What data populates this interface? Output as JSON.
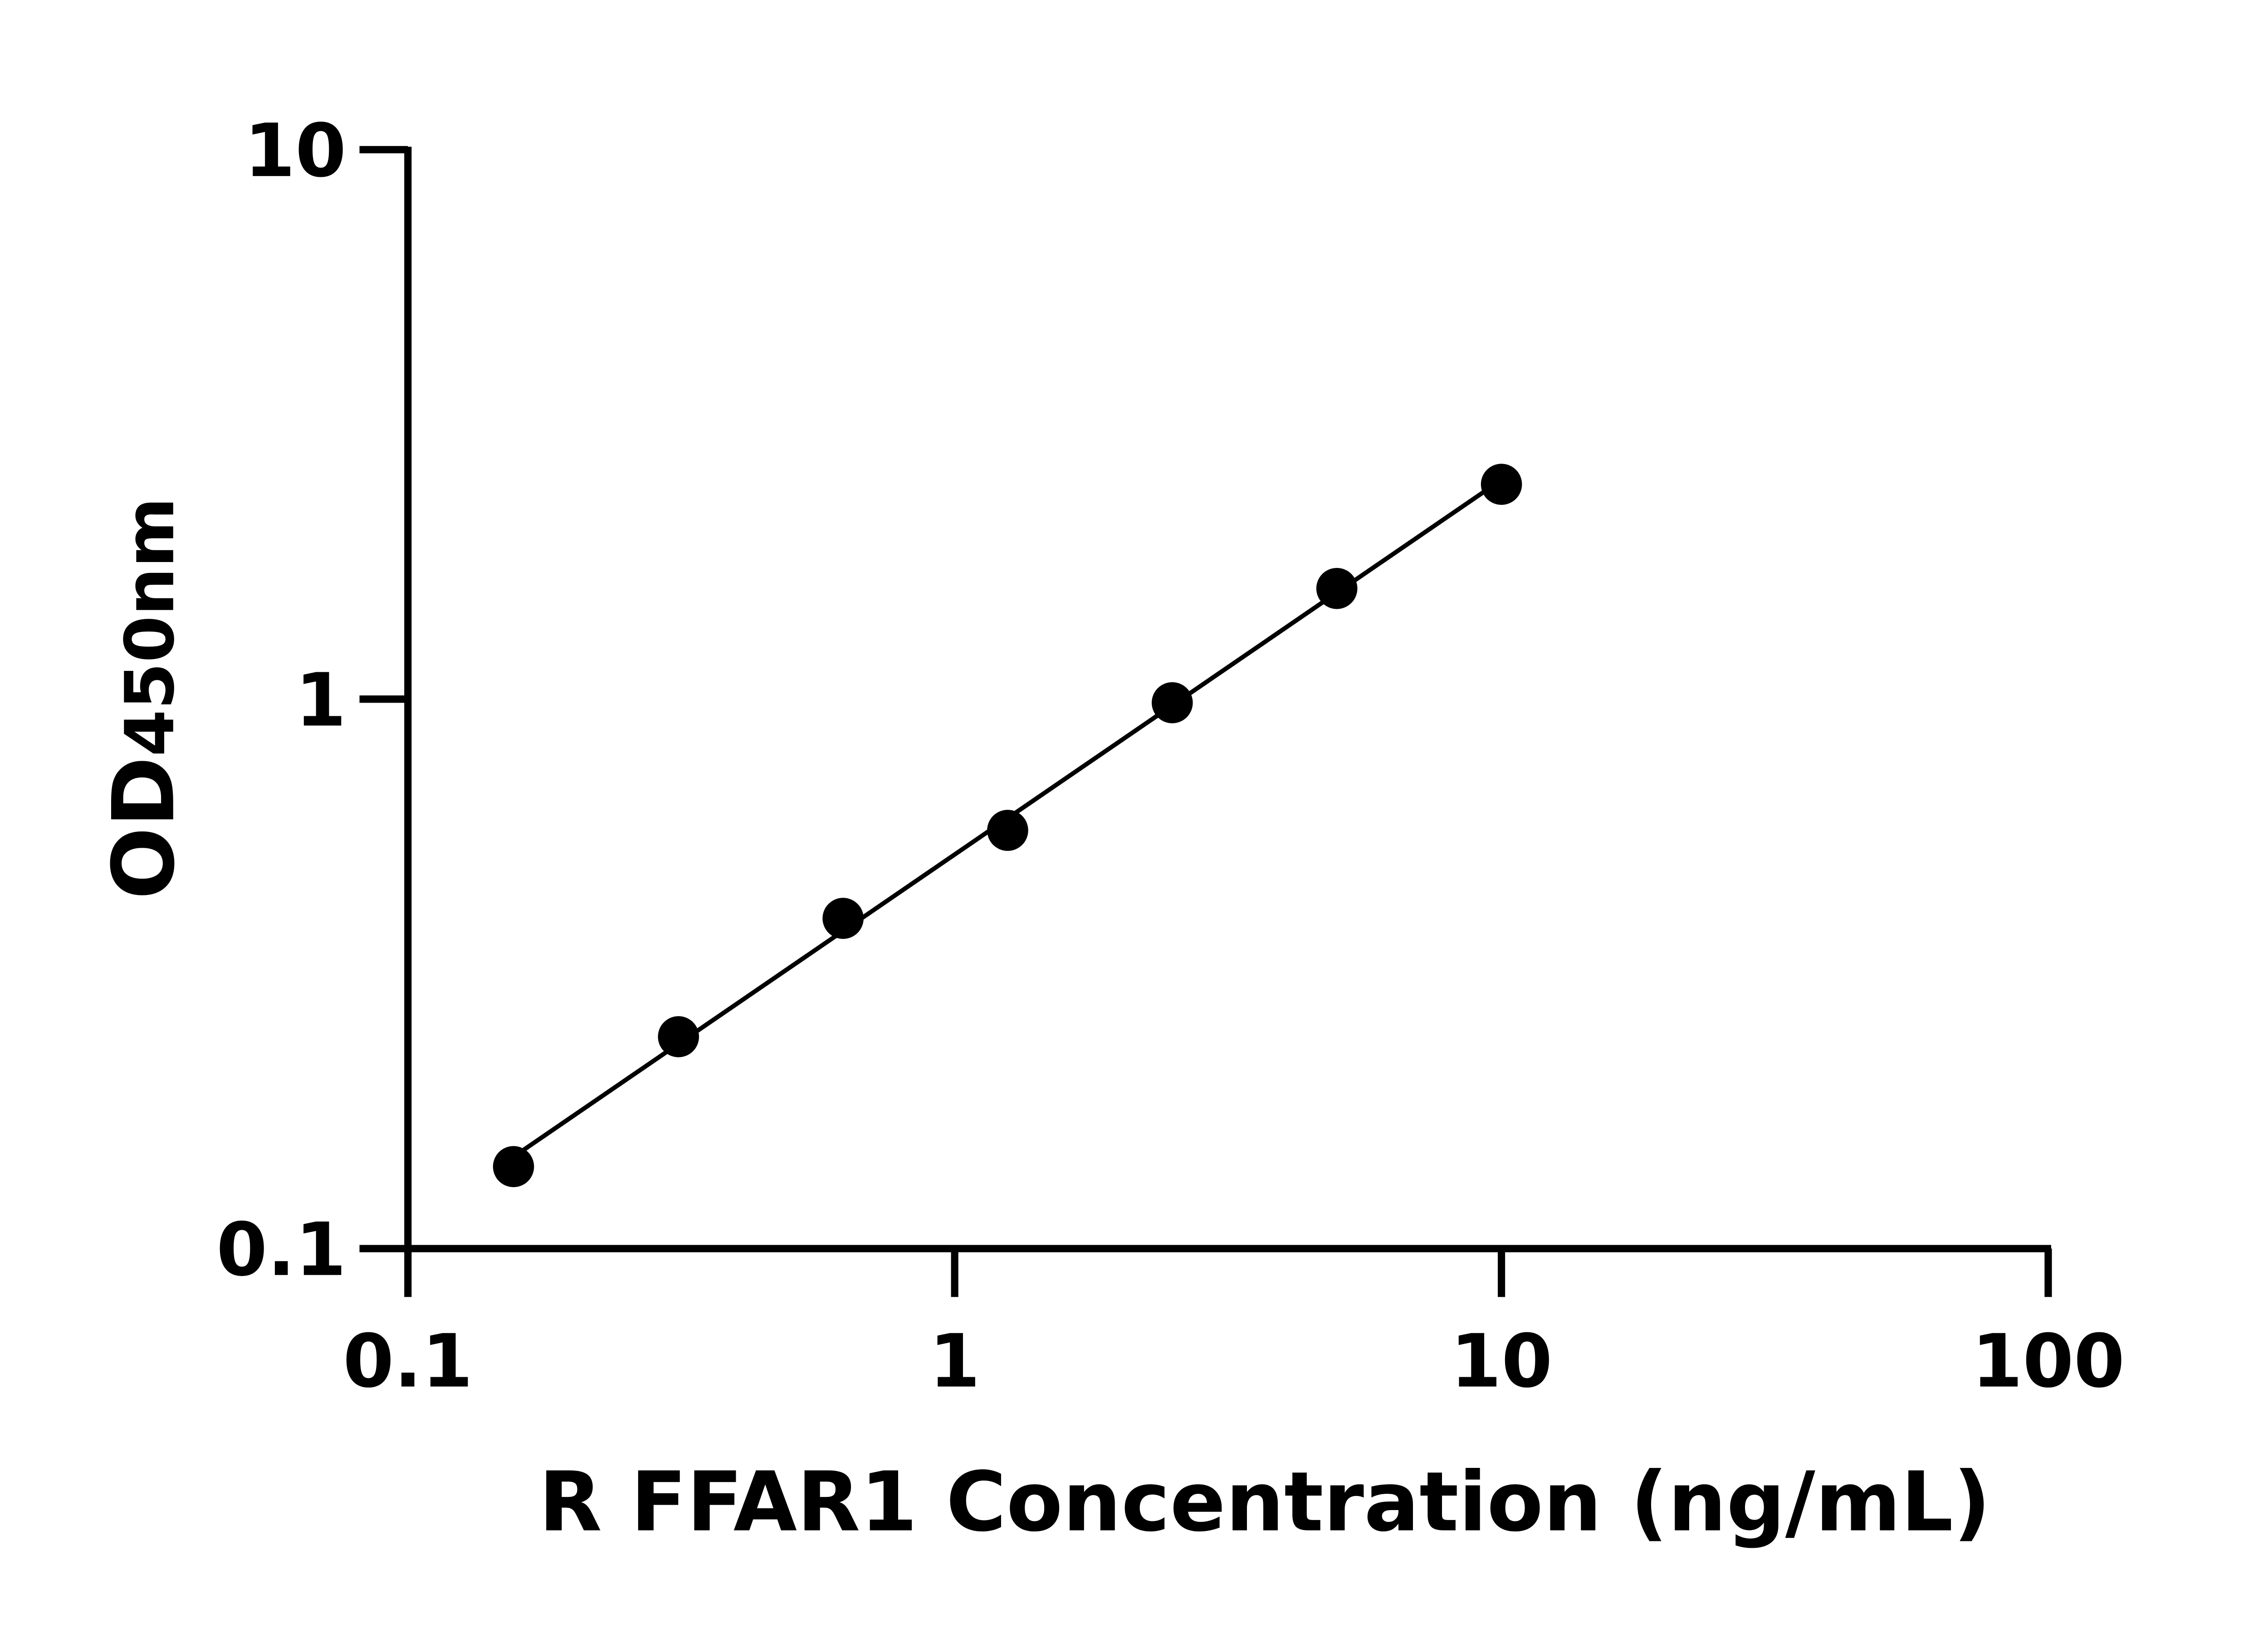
{
  "chart_data": {
    "type": "scatter",
    "title": "",
    "xlabel": "R FFAR1 Concentration (ng/mL)",
    "ylabel_main": "OD",
    "ylabel_sub": "450nm",
    "x_scale": "log",
    "y_scale": "log",
    "xlim": [
      0.1,
      100
    ],
    "ylim": [
      0.1,
      10
    ],
    "x_ticks": [
      0.1,
      1,
      10,
      100
    ],
    "x_tick_labels": [
      "0.1",
      "1",
      "10",
      "100"
    ],
    "y_ticks": [
      0.1,
      1,
      10
    ],
    "y_tick_labels": [
      "0.1",
      "1",
      "10"
    ],
    "grid": false,
    "fit_line": true,
    "marker_color": "#000000",
    "line_color": "#000000",
    "x": [
      0.156,
      0.3125,
      0.625,
      1.25,
      2.5,
      5,
      10
    ],
    "y": [
      0.141,
      0.243,
      0.399,
      0.577,
      0.985,
      1.59,
      2.46
    ]
  }
}
